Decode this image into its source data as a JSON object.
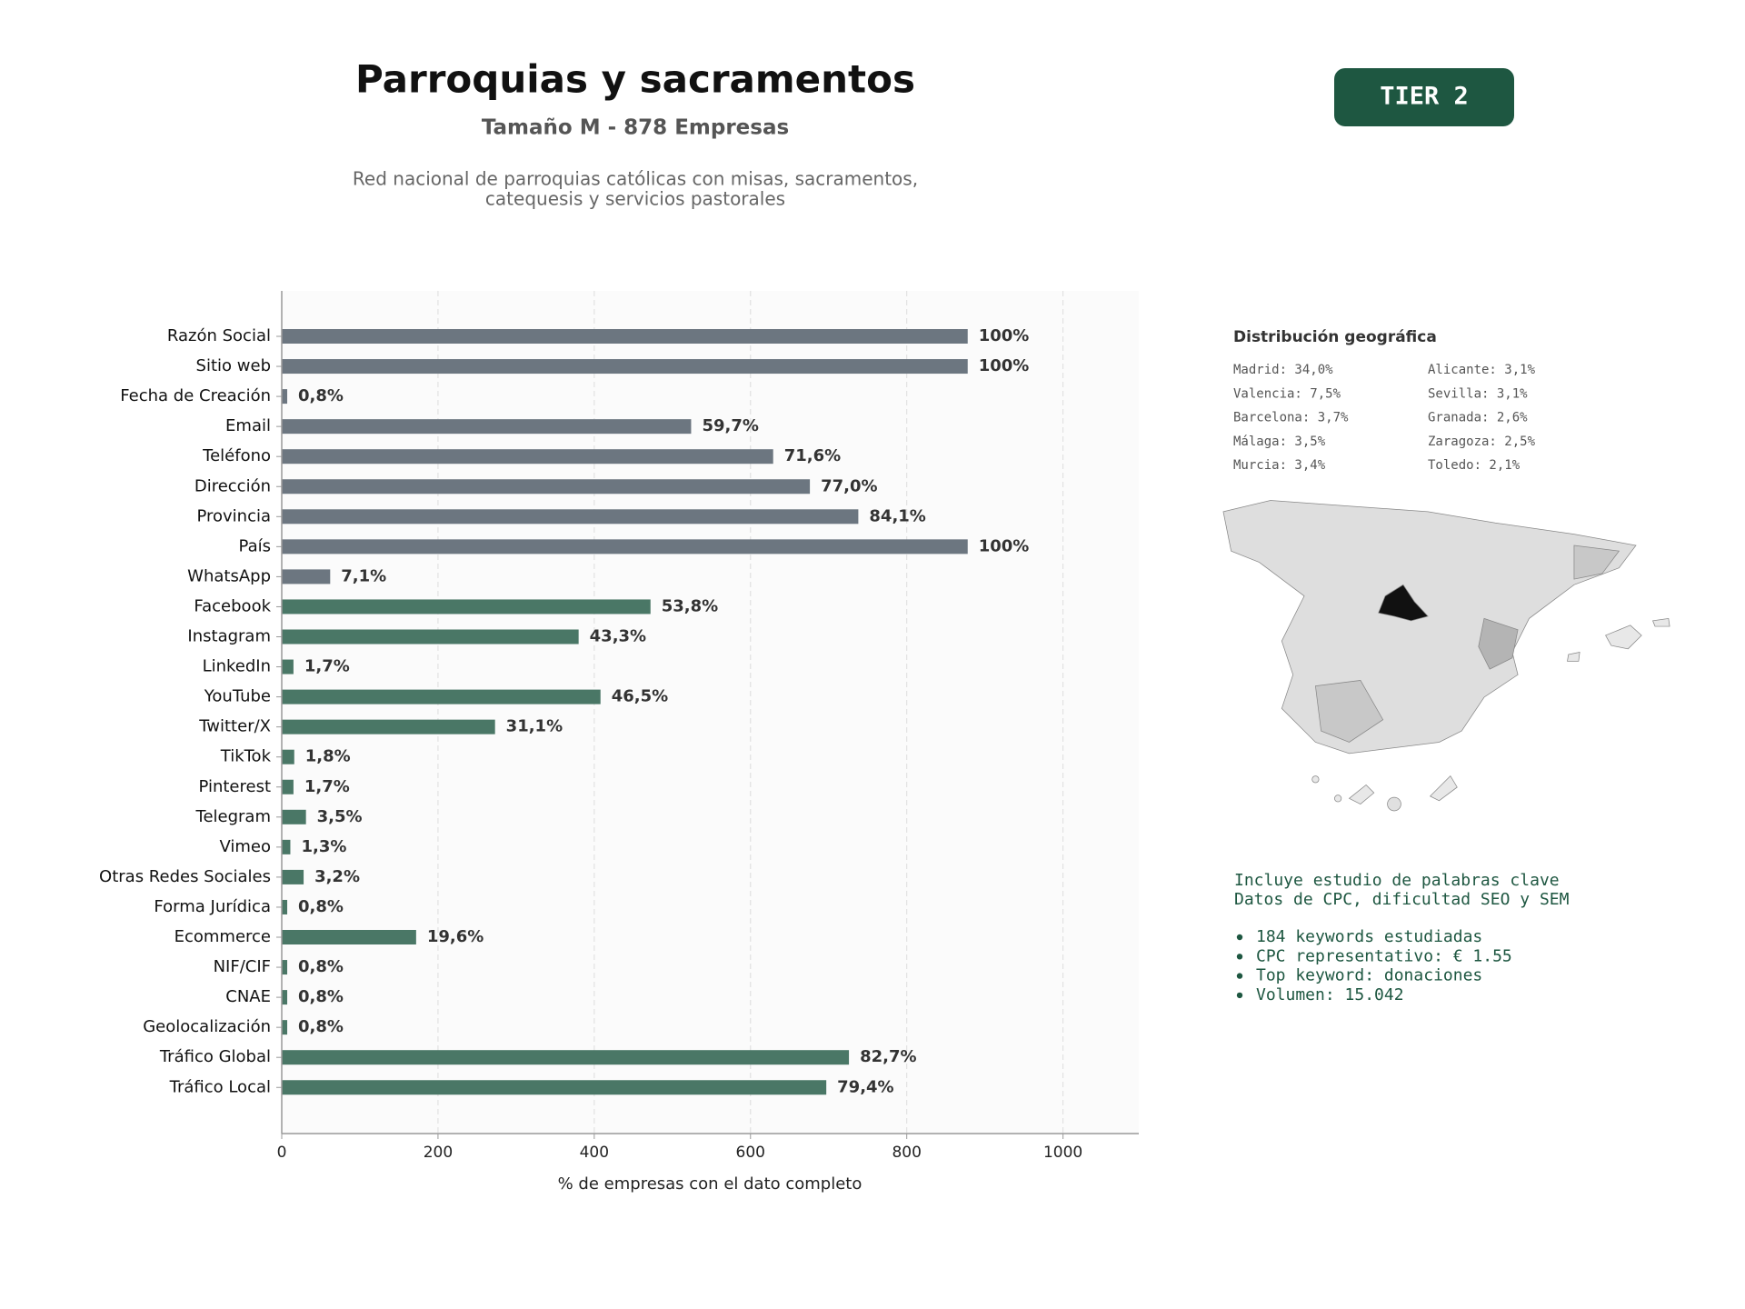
{
  "header": {
    "title": "Parroquias y sacramentos",
    "subtitle": "Tamaño M - 878 Empresas",
    "description": [
      "Red nacional de parroquias católicas con misas, sacramentos,",
      "catequesis y servicios pastorales"
    ],
    "badge": "TIER 2"
  },
  "chart_data": {
    "type": "bar",
    "orientation": "horizontal",
    "categories": [
      "Razón Social",
      "Sitio web",
      "Fecha de Creación",
      "Email",
      "Teléfono",
      "Dirección",
      "Provincia",
      "País",
      "WhatsApp",
      "Facebook",
      "Instagram",
      "LinkedIn",
      "YouTube",
      "Twitter/X",
      "TikTok",
      "Pinterest",
      "Telegram",
      "Vimeo",
      "Otras Redes Sociales",
      "Forma Jurídica",
      "Ecommerce",
      "NIF/CIF",
      "CNAE",
      "Geolocalización",
      "Tráfico Global",
      "Tráfico Local"
    ],
    "values": [
      878,
      878,
      7,
      524,
      629,
      676,
      738,
      878,
      62,
      472,
      380,
      15,
      408,
      273,
      16,
      15,
      31,
      11,
      28,
      7,
      172,
      7,
      7,
      7,
      726,
      697
    ],
    "value_labels": [
      "100%",
      "100%",
      "0,8%",
      "59,7%",
      "71,6%",
      "77,0%",
      "84,1%",
      "100%",
      "7,1%",
      "53,8%",
      "43,3%",
      "1,7%",
      "46,5%",
      "31,1%",
      "1,8%",
      "1,7%",
      "3,5%",
      "1,3%",
      "3,2%",
      "0,8%",
      "19,6%",
      "0,8%",
      "0,8%",
      "0,8%",
      "82,7%",
      "79,4%"
    ],
    "colors": [
      "#6c7680",
      "#6c7680",
      "#6c7680",
      "#6c7680",
      "#6c7680",
      "#6c7680",
      "#6c7680",
      "#6c7680",
      "#6c7680",
      "#4a7766",
      "#4a7766",
      "#4a7766",
      "#4a7766",
      "#4a7766",
      "#4a7766",
      "#4a7766",
      "#4a7766",
      "#4a7766",
      "#4a7766",
      "#4a7766",
      "#4a7766",
      "#4a7766",
      "#4a7766",
      "#4a7766",
      "#4a7766",
      "#4a7766"
    ],
    "xlim": [
      0,
      1097
    ],
    "xticks": [
      0,
      200,
      400,
      600,
      800,
      1000
    ],
    "grid": true,
    "x_label": "% de empresas con el dato completo"
  },
  "geo": {
    "title": "Distribución geográfica",
    "items": [
      "Madrid: 34,0%",
      "Valencia: 7,5%",
      "Barcelona: 3,7%",
      "Málaga: 3,5%",
      "Murcia: 3,4%",
      "Alicante: 3,1%",
      "Sevilla: 3,1%",
      "Granada: 2,6%",
      "Zaragoza: 2,5%",
      "Toledo: 2,1%"
    ]
  },
  "keywords": {
    "intro": [
      "Incluye estudio de palabras clave",
      "Datos de CPC, dificultad SEO y SEM"
    ],
    "bullets": [
      "184 keywords estudiadas",
      "CPC representativo: € 1.55",
      "Top keyword: donaciones",
      "Volumen: 15.042"
    ]
  }
}
